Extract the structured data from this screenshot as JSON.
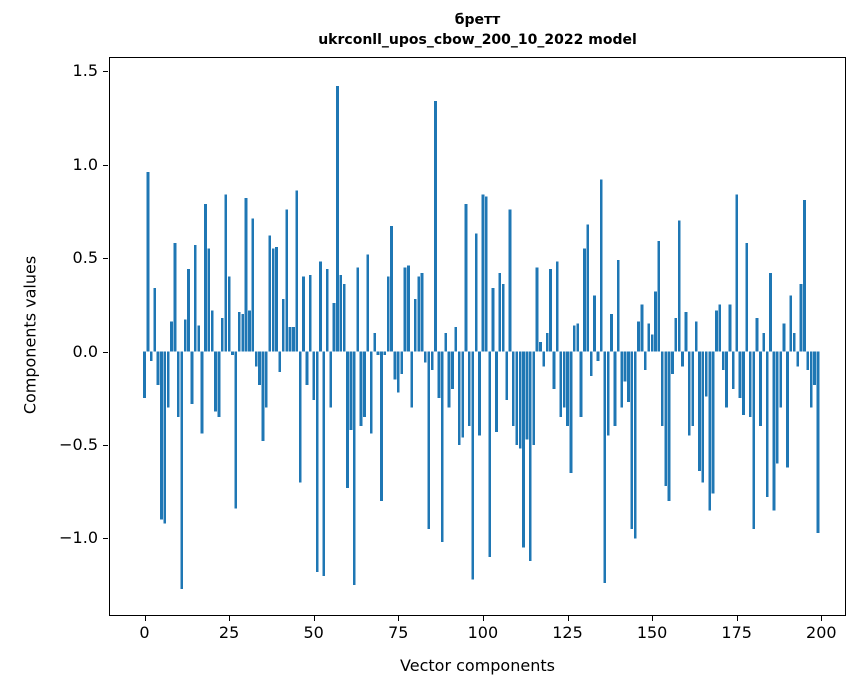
{
  "chart_data": {
    "type": "bar",
    "title_line1": "бретт",
    "title_line2": "ukrconll_upos_cbow_200_10_2022 model",
    "xlabel": "Vector components",
    "ylabel": "Components values",
    "bar_color": "#1f77b4",
    "x_start": 0,
    "xlim": [
      -10.2,
      207.0
    ],
    "ylim": [
      -1.41,
      1.57
    ],
    "xticks": [
      0,
      25,
      50,
      75,
      100,
      125,
      150,
      175,
      200
    ],
    "yticks": [
      -1.0,
      -0.5,
      0.0,
      0.5,
      1.0,
      1.5
    ],
    "grid": false,
    "legend": "none",
    "values": [
      -0.25,
      0.96,
      -0.05,
      0.34,
      -0.18,
      -0.9,
      -0.92,
      -0.3,
      0.16,
      0.58,
      -0.35,
      -1.27,
      0.17,
      0.44,
      -0.28,
      0.57,
      0.14,
      -0.44,
      0.79,
      0.55,
      0.22,
      -0.32,
      -0.35,
      0.18,
      0.84,
      0.4,
      -0.02,
      -0.84,
      0.21,
      0.2,
      0.82,
      0.22,
      0.71,
      -0.08,
      -0.18,
      -0.48,
      -0.3,
      0.62,
      0.55,
      0.56,
      -0.11,
      0.28,
      0.76,
      0.13,
      0.13,
      0.86,
      -0.7,
      0.4,
      -0.18,
      0.41,
      -0.26,
      -1.18,
      0.48,
      -1.2,
      0.44,
      -0.3,
      0.26,
      1.42,
      0.41,
      0.36,
      -0.73,
      -0.42,
      -1.25,
      0.45,
      -0.4,
      -0.35,
      0.52,
      -0.44,
      0.1,
      -0.02,
      -0.8,
      -0.02,
      0.4,
      0.67,
      -0.15,
      -0.22,
      -0.12,
      0.45,
      0.46,
      -0.3,
      0.28,
      0.4,
      0.42,
      -0.06,
      -0.95,
      -0.1,
      1.34,
      -0.25,
      -1.02,
      0.1,
      -0.3,
      -0.2,
      0.13,
      -0.5,
      -0.46,
      0.79,
      -0.4,
      -1.22,
      0.63,
      -0.45,
      0.84,
      0.83,
      -1.1,
      0.34,
      -0.43,
      0.42,
      0.36,
      -0.26,
      0.76,
      -0.4,
      -0.5,
      -0.52,
      -1.05,
      -0.47,
      -1.12,
      -0.5,
      0.45,
      0.05,
      -0.08,
      0.1,
      0.44,
      -0.2,
      0.48,
      -0.35,
      -0.3,
      -0.4,
      -0.65,
      0.14,
      0.15,
      -0.35,
      0.55,
      0.68,
      -0.13,
      0.3,
      -0.05,
      0.92,
      -1.24,
      -0.45,
      0.2,
      -0.4,
      0.49,
      -0.3,
      -0.16,
      -0.27,
      -0.95,
      -1.0,
      0.16,
      0.25,
      -0.1,
      0.15,
      0.09,
      0.32,
      0.59,
      -0.4,
      -0.72,
      -0.8,
      -0.12,
      0.18,
      0.7,
      -0.08,
      0.21,
      -0.45,
      -0.4,
      0.16,
      -0.64,
      -0.7,
      -0.24,
      -0.85,
      -0.76,
      0.22,
      0.25,
      -0.1,
      -0.3,
      0.25,
      -0.2,
      0.84,
      -0.25,
      -0.34,
      0.58,
      -0.35,
      -0.95,
      0.18,
      -0.4,
      0.1,
      -0.78,
      0.42,
      -0.85,
      -0.6,
      -0.3,
      0.15,
      -0.62,
      0.3,
      0.1,
      -0.08,
      0.36,
      0.81,
      -0.1,
      -0.3,
      -0.18,
      -0.97
    ]
  }
}
